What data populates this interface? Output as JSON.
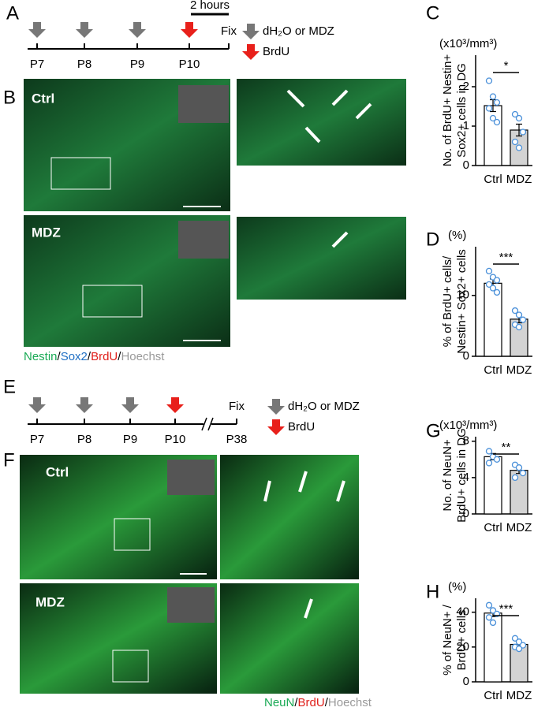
{
  "panel_labels": [
    "A",
    "B",
    "C",
    "D",
    "E",
    "F",
    "G",
    "H"
  ],
  "timeline_1": {
    "days": [
      "P7",
      "P8",
      "P9",
      "P10"
    ],
    "end": "Fix",
    "duration": "2 hours",
    "legend": [
      "dH₂O or MDZ",
      "BrdU"
    ]
  },
  "timeline_2": {
    "days": [
      "P7",
      "P8",
      "P9",
      "P10",
      "P38"
    ],
    "end": "Fix",
    "legend": [
      "dH₂O or MDZ",
      "BrdU"
    ]
  },
  "images_b": {
    "conditions": [
      "Ctrl",
      "MDZ"
    ],
    "separator": "/",
    "stains": [
      {
        "name": "Nestin",
        "color": "#1aaa55"
      },
      {
        "name": "Sox2",
        "color": "#1f6fc4"
      },
      {
        "name": "BrdU",
        "color": "#e0201b"
      },
      {
        "name": "Hoechst",
        "color": "#999999"
      }
    ]
  },
  "images_f": {
    "conditions": [
      "Ctrl",
      "MDZ"
    ],
    "separator": "/",
    "stains": [
      {
        "name": "NeuN",
        "color": "#1aaa55"
      },
      {
        "name": "BrdU",
        "color": "#e0201b"
      },
      {
        "name": "Hoechst",
        "color": "#999999"
      }
    ]
  },
  "chart_data": [
    {
      "type": "bar",
      "ylabel": [
        "No. of BrdU+ Nestin+",
        "Sox2+ cells in DG"
      ],
      "unit": "(x10³/mm³)",
      "categories": [
        "Ctrl",
        "MDZ"
      ],
      "values": [
        1.52,
        0.9
      ],
      "errors": [
        0.15,
        0.15
      ],
      "points": [
        [
          2.15,
          1.75,
          1.6,
          1.45,
          1.2,
          1.1
        ],
        [
          1.3,
          1.2,
          0.85,
          0.6,
          0.45
        ]
      ],
      "colors": [
        "#ffffff",
        "#d3d3d3"
      ],
      "point_color": "#4a90d9",
      "significance": "*",
      "ylim": [
        0,
        2.8
      ],
      "yticks": [
        0,
        1,
        2
      ]
    },
    {
      "type": "bar",
      "ylabel": [
        "% of BrdU+ cells/",
        "Nestin+ Sox2+ cells"
      ],
      "unit": "(%)",
      "categories": [
        "Ctrl",
        "MDZ"
      ],
      "values": [
        12.0,
        6.1
      ],
      "errors": [
        0.7,
        0.6
      ],
      "points": [
        [
          14.0,
          13.0,
          12.5,
          11.8,
          11.2,
          10.5
        ],
        [
          7.5,
          6.8,
          6.0,
          5.2,
          4.8
        ]
      ],
      "colors": [
        "#ffffff",
        "#d3d3d3"
      ],
      "point_color": "#4a90d9",
      "significance": "***",
      "ylim": [
        0,
        18
      ],
      "yticks": [
        0,
        10
      ]
    },
    {
      "type": "bar",
      "ylabel": [
        "No. of NeuN+",
        "BrdU+ cells in DG"
      ],
      "unit": "(x10³/mm³)",
      "categories": [
        "Ctrl",
        "MDZ"
      ],
      "values": [
        6.3,
        4.8
      ],
      "errors": [
        0.35,
        0.35
      ],
      "points": [
        [
          6.9,
          6.3,
          6.0,
          5.6
        ],
        [
          5.4,
          5.1,
          4.5,
          4.0
        ]
      ],
      "colors": [
        "#ffffff",
        "#d3d3d3"
      ],
      "point_color": "#4a90d9",
      "significance": "**",
      "ylim": [
        0,
        8.5
      ],
      "yticks": [
        0,
        4,
        8
      ]
    },
    {
      "type": "bar",
      "ylabel": [
        "% of NeuN+ /",
        "BrdU+ cells"
      ],
      "unit": "(%)",
      "categories": [
        "Ctrl",
        "MDZ"
      ],
      "values": [
        39.5,
        21.5
      ],
      "errors": [
        2.0,
        1.2
      ],
      "points": [
        [
          44,
          41,
          39,
          37,
          34
        ],
        [
          25,
          23,
          21,
          20,
          19
        ]
      ],
      "colors": [
        "#ffffff",
        "#d3d3d3"
      ],
      "point_color": "#4a90d9",
      "significance": "***",
      "ylim": [
        0,
        48
      ],
      "yticks": [
        0,
        20,
        40
      ]
    }
  ]
}
